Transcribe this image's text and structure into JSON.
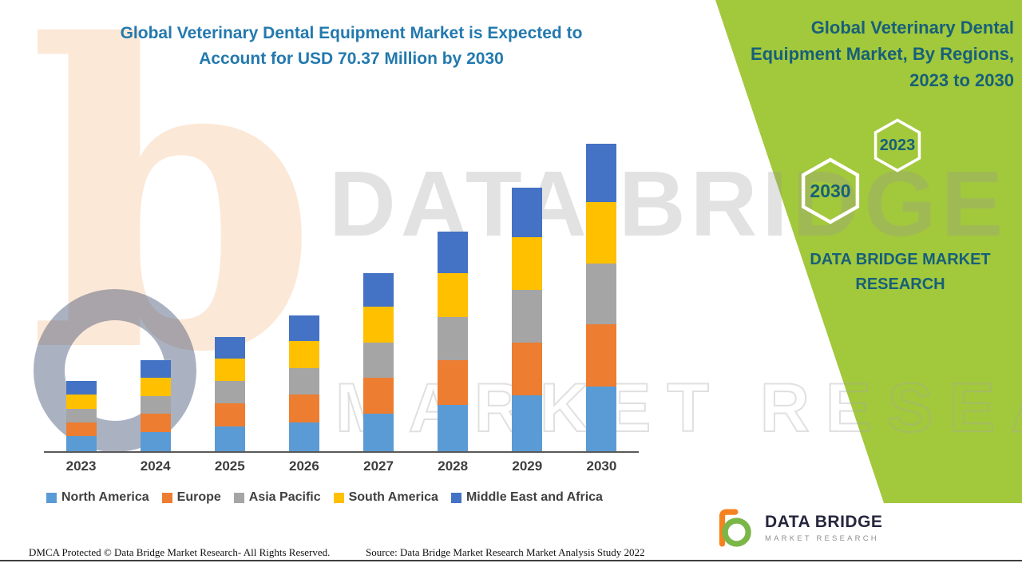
{
  "header": {
    "title_lines": [
      "Global Veterinary Dental Equipment Market is Expected to",
      "Account for USD 70.37 Million by 2030"
    ],
    "title_color": "#2379AE"
  },
  "side_panel": {
    "bg_color": "#A2C83C",
    "text_color": "#176078",
    "title_lines": [
      "Global Veterinary Dental",
      "Equipment Market, By Regions,",
      "2023 to 2030"
    ],
    "hexagons": [
      {
        "year": "2023"
      },
      {
        "year": "2030"
      }
    ],
    "brand_lines": [
      "DATA BRIDGE MARKET",
      "RESEARCH"
    ]
  },
  "watermark": {
    "letter": "b",
    "line1": "DATA BRIDGE",
    "line2": "MARKET RESEARCH"
  },
  "chart_data": {
    "type": "bar",
    "stacked": true,
    "title": "Global Veterinary Dental Equipment Market is Expected to Account for USD 70.37 Million by 2030",
    "unit": "USD Million",
    "categories": [
      "2023",
      "2024",
      "2025",
      "2026",
      "2027",
      "2028",
      "2029",
      "2030"
    ],
    "series": [
      {
        "name": "North America",
        "color": "#5B9BD5",
        "values": [
          3.4,
          4.4,
          5.6,
          6.6,
          8.6,
          10.7,
          12.8,
          14.9
        ]
      },
      {
        "name": "Europe",
        "color": "#ED7D31",
        "values": [
          3.2,
          4.2,
          5.3,
          6.3,
          8.2,
          10.1,
          12.1,
          14.1
        ]
      },
      {
        "name": "Asia Pacific",
        "color": "#A5A5A5",
        "values": [
          3.1,
          4.1,
          5.2,
          6.2,
          8.1,
          10.0,
          12.0,
          14.0
        ]
      },
      {
        "name": "South America",
        "color": "#FFC000",
        "values": [
          3.3,
          4.2,
          5.2,
          6.2,
          8.1,
          10.0,
          12.1,
          14.1
        ]
      },
      {
        "name": "Middle East and Africa",
        "color": "#4472C4",
        "values": [
          3.0,
          3.9,
          4.9,
          5.8,
          7.7,
          9.5,
          11.4,
          13.27
        ]
      }
    ],
    "totals": [
      16.0,
      20.8,
      26.2,
      31.1,
      40.7,
      50.3,
      60.4,
      70.37
    ],
    "ylim": [
      0,
      70.37
    ],
    "y_axis_visible": false,
    "gridlines": false,
    "legend_position": "bottom"
  },
  "footer": {
    "dmca": "DMCA Protected © Data Bridge Market Research- All Rights Reserved.",
    "source": "Source: Data Bridge Market Research Market Analysis Study 2022"
  },
  "logo": {
    "title": "DATA BRIDGE",
    "subtitle": "MARKET RESEARCH"
  }
}
